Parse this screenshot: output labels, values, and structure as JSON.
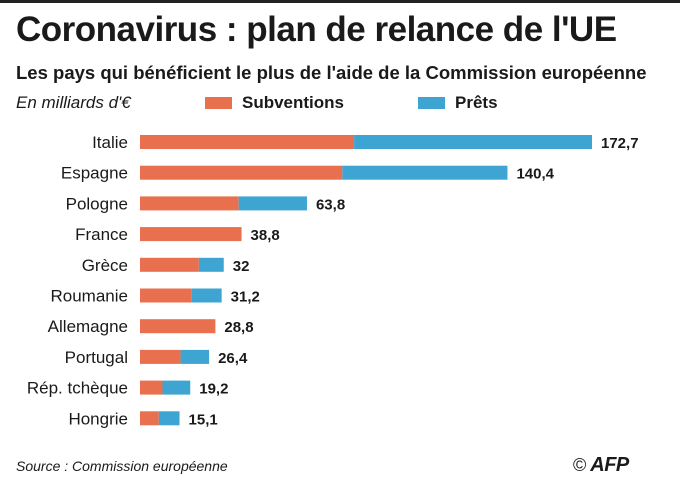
{
  "header": {
    "title": "Coronavirus : plan de relance de l'UE",
    "subtitle": "Les pays qui bénéficient le plus de l'aide de la Commission européenne",
    "unit": "En milliards d'€"
  },
  "legend": {
    "subventions": "Subventions",
    "prets": "Prêts"
  },
  "colors": {
    "subventions": "#e8704f",
    "prets": "#3ea5d2"
  },
  "chart_data": {
    "type": "bar",
    "orientation": "horizontal",
    "stacked": true,
    "categories": [
      "Italie",
      "Espagne",
      "Pologne",
      "France",
      "Grèce",
      "Roumanie",
      "Allemagne",
      "Portugal",
      "Rép. tchèque",
      "Hongrie"
    ],
    "series": [
      {
        "name": "Subventions",
        "values": [
          81.8,
          77.3,
          37.7,
          38.8,
          22.5,
          19.6,
          28.8,
          15.5,
          8.6,
          7.2
        ]
      },
      {
        "name": "Prêts",
        "values": [
          90.9,
          63.1,
          26.1,
          0,
          9.5,
          11.6,
          0,
          10.9,
          10.6,
          7.9
        ]
      }
    ],
    "totals": [
      "172,7",
      "140,4",
      "63,8",
      "38,8",
      "32",
      "31,2",
      "28,8",
      "26,4",
      "19,2",
      "15,1"
    ],
    "xlim": [
      0,
      172.7
    ],
    "grid": false,
    "legend": "top",
    "xlabel": "",
    "ylabel": ""
  },
  "footer": {
    "source": "Source : Commission européenne",
    "copyright": "©",
    "agency": "AFP"
  }
}
